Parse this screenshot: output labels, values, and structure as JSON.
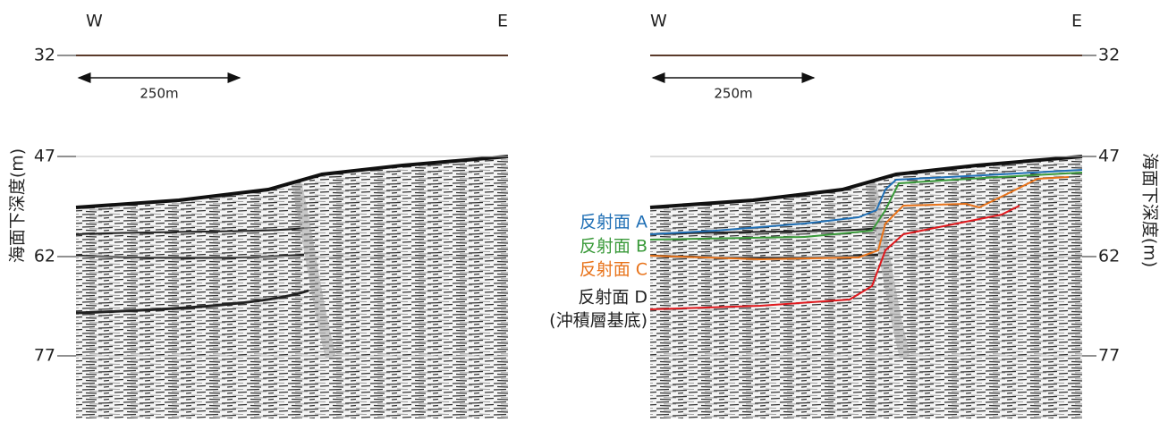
{
  "left_panel": {
    "west": "W",
    "east": "E",
    "depth_ticks": [
      32,
      47,
      62,
      77
    ],
    "scale_bar": "250m",
    "axis_label": "海面下深度(m)"
  },
  "right_panel": {
    "west": "W",
    "east": "E",
    "depth_ticks": [
      32,
      47,
      62,
      77
    ],
    "scale_bar": "250m",
    "axis_label": "海面下深度(m)"
  },
  "reflectors": [
    {
      "label": "反射面 A"
    },
    {
      "label": "反射面 B"
    },
    {
      "label": "反射面 C"
    },
    {
      "label": "反射面 D",
      "note": "(沖積層基底)"
    }
  ]
}
